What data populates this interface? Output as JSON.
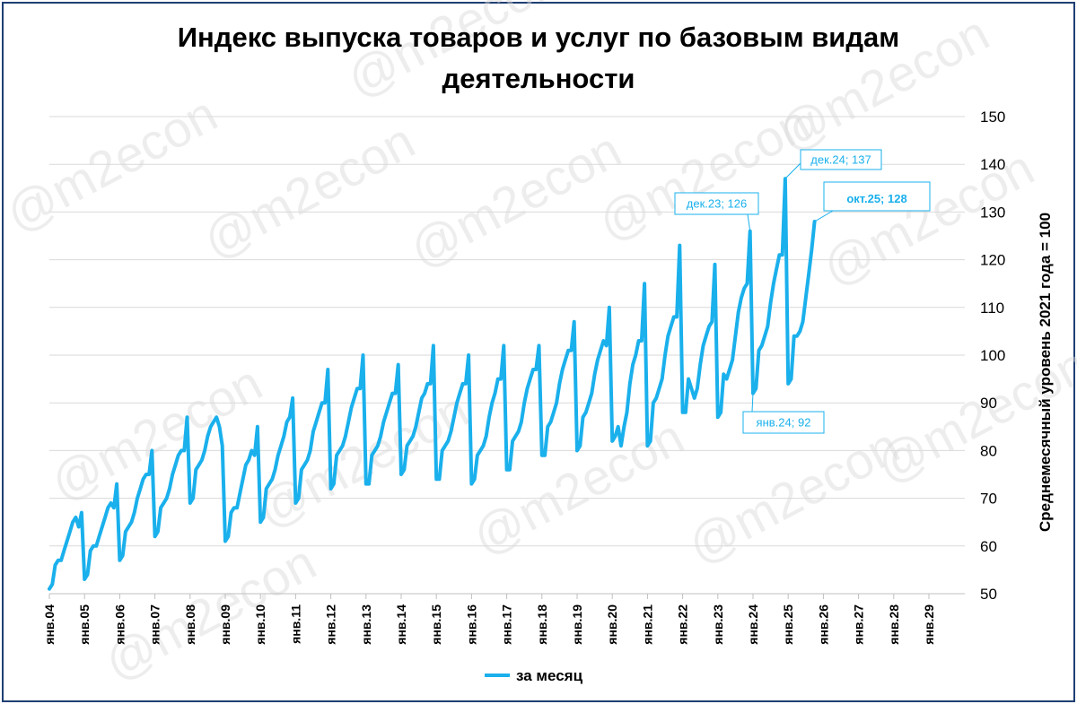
{
  "title_line1": "Индекс выпуска товаров и услуг по базовым видам",
  "title_line2": "деятельности",
  "watermark": "@m2econ",
  "colors": {
    "line": "#1ab0ec",
    "grid": "#d9d9d9",
    "frame": "#1f3f73",
    "annotation": "#1ab0ec"
  },
  "chart_data": {
    "type": "line",
    "title": "Индекс выпуска товаров и услуг по базовым видам деятельности",
    "ylabel": "Среднемесячный уровень 2021 года  =  100",
    "xlabel": "",
    "ylim": [
      50,
      150
    ],
    "yticks": [
      50,
      60,
      70,
      80,
      90,
      100,
      110,
      120,
      130,
      140,
      150
    ],
    "x_tick_labels": [
      "янв.04",
      "янв.05",
      "янв.06",
      "янв.07",
      "янв.08",
      "янв.09",
      "янв.10",
      "янв.11",
      "янв.12",
      "янв.13",
      "янв.14",
      "янв.15",
      "янв.16",
      "янв.17",
      "янв.18",
      "янв.19",
      "янв.20",
      "янв.21",
      "янв.22",
      "янв.23",
      "янв.24",
      "янв.25",
      "янв.26",
      "янв.27",
      "янв.28",
      "янв.29"
    ],
    "x_start": "2004-01",
    "frequency": "monthly",
    "grid": true,
    "legend_position": "bottom",
    "series": [
      {
        "name": "за месяц",
        "values": [
          51,
          52,
          56,
          57,
          57,
          59,
          61,
          63,
          65,
          66,
          64,
          67,
          53,
          54,
          59,
          60,
          60,
          62,
          64,
          66,
          68,
          69,
          68,
          73,
          57,
          58,
          63,
          64,
          65,
          67,
          70,
          72,
          74,
          75,
          75,
          80,
          62,
          63,
          68,
          69,
          70,
          72,
          75,
          77,
          79,
          80,
          80,
          87,
          69,
          70,
          76,
          77,
          78,
          80,
          83,
          85,
          86,
          87,
          85,
          81,
          61,
          62,
          67,
          68,
          68,
          71,
          74,
          77,
          78,
          80,
          79,
          85,
          65,
          66,
          72,
          73,
          74,
          76,
          79,
          81,
          83,
          86,
          87,
          91,
          69,
          70,
          76,
          77,
          78,
          80,
          84,
          86,
          88,
          90,
          90,
          97,
          72,
          73,
          79,
          80,
          81,
          83,
          86,
          89,
          91,
          93,
          93,
          100,
          73,
          73,
          79,
          80,
          81,
          83,
          86,
          88,
          90,
          92,
          92,
          98,
          75,
          76,
          81,
          82,
          83,
          85,
          88,
          91,
          92,
          94,
          94,
          102,
          74,
          74,
          80,
          81,
          82,
          84,
          87,
          90,
          92,
          94,
          94,
          100,
          73,
          74,
          79,
          80,
          81,
          83,
          87,
          90,
          92,
          95,
          95,
          102,
          76,
          76,
          82,
          83,
          84,
          86,
          90,
          93,
          95,
          97,
          97,
          102,
          79,
          79,
          85,
          86,
          88,
          90,
          94,
          97,
          99,
          101,
          101,
          107,
          80,
          81,
          87,
          88,
          90,
          92,
          96,
          99,
          101,
          103,
          102,
          110,
          82,
          83,
          85,
          81,
          85,
          88,
          94,
          98,
          100,
          103,
          103,
          115,
          81,
          82,
          90,
          91,
          93,
          95,
          100,
          104,
          106,
          108,
          108,
          123,
          88,
          88,
          95,
          93,
          91,
          93,
          98,
          102,
          104,
          106,
          107,
          119,
          87,
          88,
          96,
          95,
          97,
          99,
          104,
          109,
          112,
          114,
          115,
          126,
          92,
          93,
          101,
          102,
          104,
          106,
          111,
          115,
          118,
          121,
          121,
          137,
          94,
          95,
          104,
          104,
          105,
          107,
          112,
          117,
          122,
          128
        ]
      }
    ],
    "annotations": [
      {
        "label": "дек.23; 126",
        "x": "2023-12",
        "y": 126
      },
      {
        "label": "дек.24; 137",
        "x": "2024-12",
        "y": 137
      },
      {
        "label": "янв.24; 92",
        "x": "2024-01",
        "y": 92
      },
      {
        "label": "окт.25; 128",
        "x": "2025-10",
        "y": 128
      }
    ]
  }
}
